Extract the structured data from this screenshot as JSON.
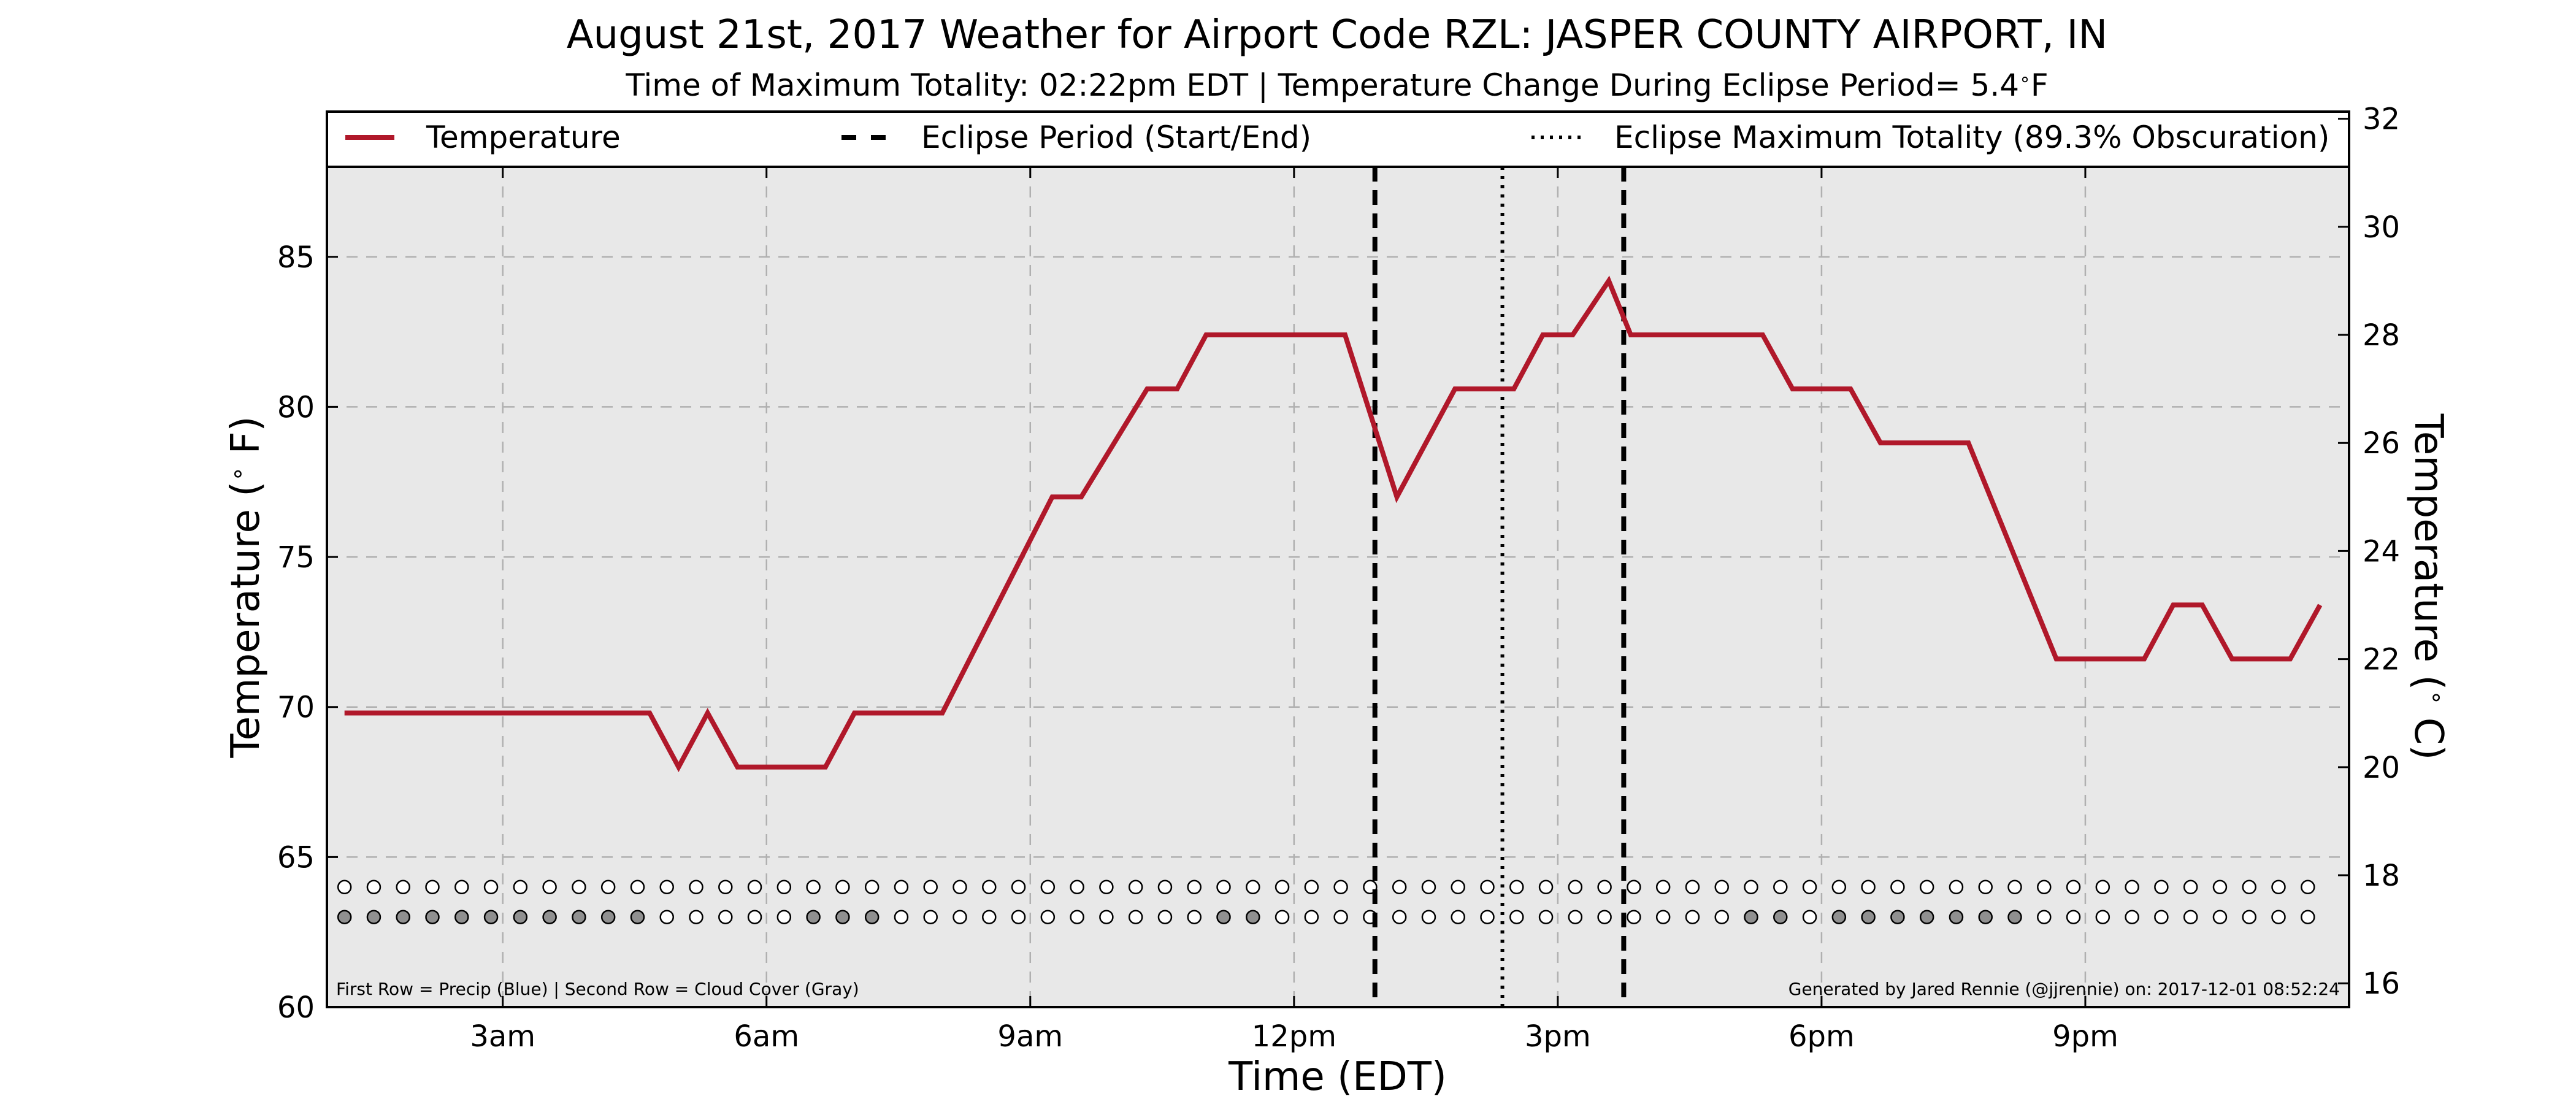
{
  "chart_data": {
    "type": "line",
    "title": "August 21st, 2017 Weather for Airport Code RZL: JASPER COUNTY AIRPORT, IN",
    "subtitle_prefix": "Time of Maximum Totality: 02:22pm EDT | Temperature Change During Eclipse Period= 5.4",
    "subtitle_unit": "F",
    "xlabel": "Time (EDT)",
    "ylabel_prefix": "Temperature (",
    "ylabel_suffix": " F)",
    "y2label_prefix": "Temperature (",
    "y2label_suffix": " C)",
    "xlim": [
      1.0,
      24.0
    ],
    "ylim": [
      60,
      88
    ],
    "y2lim": [
      15.56,
      31.11
    ],
    "x_ticks": [
      {
        "value": 3,
        "label": "3am"
      },
      {
        "value": 6,
        "label": "6am"
      },
      {
        "value": 9,
        "label": "9am"
      },
      {
        "value": 12,
        "label": "12pm"
      },
      {
        "value": 15,
        "label": "3pm"
      },
      {
        "value": 18,
        "label": "6pm"
      },
      {
        "value": 21,
        "label": "9pm"
      }
    ],
    "y_ticks": [
      60,
      65,
      70,
      75,
      80,
      85
    ],
    "y2_ticks": [
      16,
      18,
      20,
      22,
      24,
      26,
      28,
      30,
      32
    ],
    "grid": true,
    "background": "#e8e8e8",
    "series": [
      {
        "name": "Temperature",
        "color": "#b0182a",
        "x": [
          1.2,
          4.67,
          5.0,
          5.33,
          5.67,
          6.67,
          7.0,
          8.0,
          9.25,
          9.58,
          10.33,
          10.67,
          11.0,
          12.58,
          13.17,
          13.83,
          14.5,
          14.83,
          15.17,
          15.58,
          15.83,
          16.17,
          17.33,
          17.67,
          18.33,
          18.67,
          19.67,
          20.67,
          21.67,
          22.0,
          22.33,
          22.67,
          23.33,
          23.67
        ],
        "y": [
          69.8,
          69.8,
          68.0,
          69.8,
          68.0,
          68.0,
          69.8,
          69.8,
          77.0,
          77.0,
          80.6,
          80.6,
          82.4,
          82.4,
          77.0,
          80.6,
          80.6,
          82.4,
          82.4,
          84.2,
          82.4,
          82.4,
          82.4,
          80.6,
          80.6,
          78.8,
          78.8,
          71.6,
          71.6,
          73.4,
          73.4,
          71.6,
          71.6,
          73.4
        ]
      }
    ],
    "eclipse_period": {
      "start": 12.92,
      "end": 15.75
    },
    "max_totality": 14.37,
    "legend": {
      "placement": "top",
      "temperature": "Temperature",
      "eclipse_period": "Eclipse Period (Start/End)",
      "max_totality": "Eclipse Maximum Totality (89.3% Obscuration)"
    },
    "marker_rows": {
      "x_start": 1.2,
      "x_step": 0.3333,
      "count": 68,
      "row1_y": 64.0,
      "row2_y": 63.0,
      "row1_filled_indices": [],
      "row2_filled_indices": [
        0,
        1,
        2,
        3,
        4,
        5,
        6,
        7,
        8,
        9,
        10,
        16,
        17,
        18,
        30,
        31,
        48,
        49,
        51,
        52,
        53,
        54,
        55,
        56,
        57
      ],
      "empty_color": "#ffffff",
      "filled_color": "#909090"
    },
    "notes": {
      "left": "First Row = Precip (Blue) | Second Row = Cloud Cover (Gray)",
      "right": "Generated by Jared Rennie (@jjrennie) on: 2017-12-01 08:52:24"
    }
  }
}
